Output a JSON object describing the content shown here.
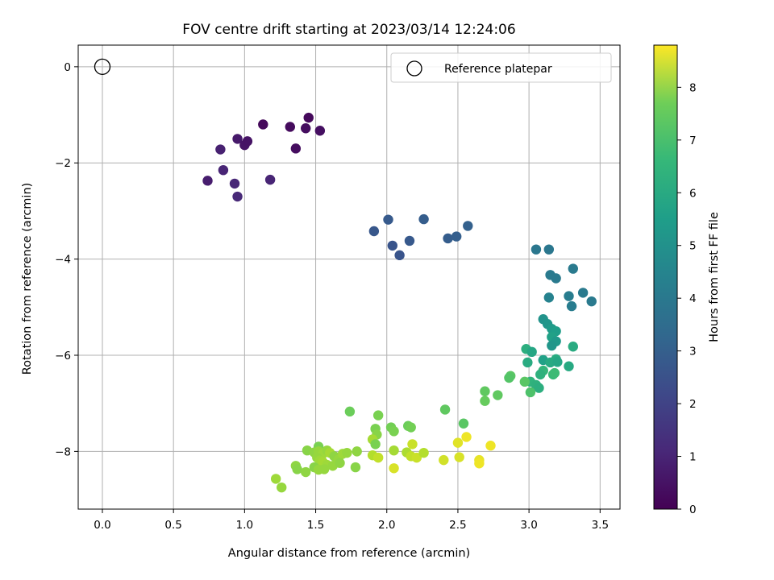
{
  "chart_data": {
    "type": "scatter",
    "title": "FOV centre drift starting at 2023/03/14 12:24:06",
    "xlabel": "Angular distance from reference (arcmin)",
    "ylabel": "Rotation from reference (arcmin)",
    "xlim": [
      -0.17,
      3.64
    ],
    "ylim": [
      -9.2,
      0.45
    ],
    "xticks": [
      0.0,
      0.5,
      1.0,
      1.5,
      2.0,
      2.5,
      3.0,
      3.5
    ],
    "xtick_labels": [
      "0.0",
      "0.5",
      "1.0",
      "1.5",
      "2.0",
      "2.5",
      "3.0",
      "3.5"
    ],
    "yticks": [
      0,
      -2,
      -4,
      -6,
      -8
    ],
    "ytick_labels": [
      "0",
      "−2",
      "−4",
      "−6",
      "−8"
    ],
    "grid": true,
    "legend": {
      "position": "top-right",
      "entries": [
        "Reference platepar"
      ]
    },
    "reference_point": {
      "x": 0.0,
      "y": 0.0
    },
    "colorbar": {
      "label": "Hours from first FF file",
      "range": [
        0,
        8.8
      ],
      "ticks": [
        0,
        1,
        2,
        3,
        4,
        5,
        6,
        7,
        8
      ],
      "tick_labels": [
        "0",
        "1",
        "2",
        "3",
        "4",
        "5",
        "6",
        "7",
        "8"
      ],
      "colormap": "viridis"
    },
    "points": [
      {
        "x": 0.74,
        "y": -2.37,
        "c": 0.7
      },
      {
        "x": 0.83,
        "y": -1.72,
        "c": 0.8
      },
      {
        "x": 0.85,
        "y": -2.15,
        "c": 0.9
      },
      {
        "x": 0.93,
        "y": -2.43,
        "c": 0.95
      },
      {
        "x": 0.95,
        "y": -2.7,
        "c": 1.0
      },
      {
        "x": 0.95,
        "y": -1.5,
        "c": 0.6
      },
      {
        "x": 1.0,
        "y": -1.63,
        "c": 0.5
      },
      {
        "x": 1.02,
        "y": -1.55,
        "c": 0.45
      },
      {
        "x": 1.13,
        "y": -1.2,
        "c": 0.2
      },
      {
        "x": 1.18,
        "y": -2.35,
        "c": 0.9
      },
      {
        "x": 1.32,
        "y": -1.25,
        "c": 0.25
      },
      {
        "x": 1.36,
        "y": -1.7,
        "c": 0.3
      },
      {
        "x": 1.43,
        "y": -1.28,
        "c": 0.3
      },
      {
        "x": 1.45,
        "y": -1.06,
        "c": 0.2
      },
      {
        "x": 1.53,
        "y": -1.33,
        "c": 0.35
      },
      {
        "x": 1.91,
        "y": -3.42,
        "c": 2.4
      },
      {
        "x": 2.01,
        "y": -3.18,
        "c": 2.5
      },
      {
        "x": 2.04,
        "y": -3.72,
        "c": 2.3
      },
      {
        "x": 2.09,
        "y": -3.92,
        "c": 2.3
      },
      {
        "x": 2.16,
        "y": -3.62,
        "c": 2.45
      },
      {
        "x": 2.26,
        "y": -3.17,
        "c": 2.6
      },
      {
        "x": 2.43,
        "y": -3.57,
        "c": 2.6
      },
      {
        "x": 2.49,
        "y": -3.53,
        "c": 2.65
      },
      {
        "x": 2.57,
        "y": -3.31,
        "c": 2.7
      },
      {
        "x": 3.05,
        "y": -3.8,
        "c": 3.5
      },
      {
        "x": 3.14,
        "y": -3.8,
        "c": 3.5
      },
      {
        "x": 3.15,
        "y": -4.33,
        "c": 3.6
      },
      {
        "x": 3.19,
        "y": -4.4,
        "c": 3.6
      },
      {
        "x": 3.14,
        "y": -4.8,
        "c": 3.9
      },
      {
        "x": 3.28,
        "y": -4.77,
        "c": 3.7
      },
      {
        "x": 3.3,
        "y": -4.98,
        "c": 3.7
      },
      {
        "x": 3.31,
        "y": -4.2,
        "c": 3.6
      },
      {
        "x": 3.38,
        "y": -4.7,
        "c": 3.6
      },
      {
        "x": 3.44,
        "y": -4.88,
        "c": 3.6
      },
      {
        "x": 3.1,
        "y": -5.25,
        "c": 4.5
      },
      {
        "x": 3.13,
        "y": -5.35,
        "c": 4.6
      },
      {
        "x": 3.16,
        "y": -5.45,
        "c": 4.8
      },
      {
        "x": 3.19,
        "y": -5.5,
        "c": 4.9
      },
      {
        "x": 3.16,
        "y": -5.62,
        "c": 5.0
      },
      {
        "x": 3.19,
        "y": -5.71,
        "c": 4.7
      },
      {
        "x": 3.16,
        "y": -5.8,
        "c": 4.6
      },
      {
        "x": 2.98,
        "y": -5.87,
        "c": 5.5
      },
      {
        "x": 3.02,
        "y": -5.93,
        "c": 5.2
      },
      {
        "x": 3.1,
        "y": -6.1,
        "c": 5.0
      },
      {
        "x": 3.15,
        "y": -6.15,
        "c": 5.3
      },
      {
        "x": 3.19,
        "y": -6.08,
        "c": 5.4
      },
      {
        "x": 3.2,
        "y": -6.14,
        "c": 5.2
      },
      {
        "x": 3.28,
        "y": -6.23,
        "c": 5.3
      },
      {
        "x": 3.31,
        "y": -5.82,
        "c": 5.4
      },
      {
        "x": 2.99,
        "y": -6.15,
        "c": 5.4
      },
      {
        "x": 3.1,
        "y": -6.32,
        "c": 5.8
      },
      {
        "x": 3.08,
        "y": -6.4,
        "c": 5.6
      },
      {
        "x": 3.17,
        "y": -6.4,
        "c": 5.9
      },
      {
        "x": 3.18,
        "y": -6.37,
        "c": 6.0
      },
      {
        "x": 3.01,
        "y": -6.55,
        "c": 5.7
      },
      {
        "x": 3.05,
        "y": -6.62,
        "c": 5.6
      },
      {
        "x": 3.07,
        "y": -6.68,
        "c": 5.5
      },
      {
        "x": 2.97,
        "y": -6.55,
        "c": 6.5
      },
      {
        "x": 3.01,
        "y": -6.77,
        "c": 6.3
      },
      {
        "x": 2.87,
        "y": -6.43,
        "c": 6.5
      },
      {
        "x": 2.86,
        "y": -6.47,
        "c": 6.4
      },
      {
        "x": 2.69,
        "y": -6.75,
        "c": 6.6
      },
      {
        "x": 2.69,
        "y": -6.95,
        "c": 6.7
      },
      {
        "x": 2.78,
        "y": -6.83,
        "c": 6.6
      },
      {
        "x": 2.54,
        "y": -7.42,
        "c": 6.5
      },
      {
        "x": 2.41,
        "y": -7.13,
        "c": 6.6
      },
      {
        "x": 1.74,
        "y": -7.17,
        "c": 6.8
      },
      {
        "x": 1.94,
        "y": -7.25,
        "c": 7.0
      },
      {
        "x": 2.15,
        "y": -7.47,
        "c": 6.8
      },
      {
        "x": 2.17,
        "y": -7.5,
        "c": 6.9
      },
      {
        "x": 2.03,
        "y": -7.5,
        "c": 6.9
      },
      {
        "x": 2.05,
        "y": -7.58,
        "c": 7.0
      },
      {
        "x": 1.92,
        "y": -7.53,
        "c": 7.0
      },
      {
        "x": 1.93,
        "y": -7.65,
        "c": 7.2
      },
      {
        "x": 1.9,
        "y": -7.75,
        "c": 7.6
      },
      {
        "x": 1.92,
        "y": -7.85,
        "c": 7.0
      },
      {
        "x": 1.52,
        "y": -7.9,
        "c": 7.0
      },
      {
        "x": 1.44,
        "y": -7.98,
        "c": 7.2
      },
      {
        "x": 1.49,
        "y": -8.02,
        "c": 7.3
      },
      {
        "x": 1.52,
        "y": -8.0,
        "c": 7.4
      },
      {
        "x": 1.55,
        "y": -8.05,
        "c": 7.5
      },
      {
        "x": 1.58,
        "y": -7.98,
        "c": 7.4
      },
      {
        "x": 1.6,
        "y": -8.03,
        "c": 7.6
      },
      {
        "x": 1.63,
        "y": -8.1,
        "c": 7.3
      },
      {
        "x": 1.66,
        "y": -8.17,
        "c": 7.4
      },
      {
        "x": 1.69,
        "y": -8.05,
        "c": 7.5
      },
      {
        "x": 1.72,
        "y": -8.03,
        "c": 7.4
      },
      {
        "x": 1.79,
        "y": -8.0,
        "c": 7.3
      },
      {
        "x": 1.51,
        "y": -8.13,
        "c": 7.4
      },
      {
        "x": 1.53,
        "y": -8.19,
        "c": 7.5
      },
      {
        "x": 1.55,
        "y": -8.22,
        "c": 7.6
      },
      {
        "x": 1.58,
        "y": -8.28,
        "c": 7.5
      },
      {
        "x": 1.62,
        "y": -8.3,
        "c": 7.4
      },
      {
        "x": 1.67,
        "y": -8.24,
        "c": 7.3
      },
      {
        "x": 1.49,
        "y": -8.33,
        "c": 7.2
      },
      {
        "x": 1.52,
        "y": -8.38,
        "c": 7.4
      },
      {
        "x": 1.56,
        "y": -8.37,
        "c": 7.4
      },
      {
        "x": 1.36,
        "y": -8.3,
        "c": 7.3
      },
      {
        "x": 1.37,
        "y": -8.37,
        "c": 7.2
      },
      {
        "x": 1.43,
        "y": -8.43,
        "c": 7.3
      },
      {
        "x": 1.78,
        "y": -8.33,
        "c": 7.2
      },
      {
        "x": 1.22,
        "y": -8.57,
        "c": 7.5
      },
      {
        "x": 1.26,
        "y": -8.75,
        "c": 7.4
      },
      {
        "x": 1.9,
        "y": -8.08,
        "c": 7.8
      },
      {
        "x": 1.94,
        "y": -8.13,
        "c": 8.0
      },
      {
        "x": 2.05,
        "y": -7.98,
        "c": 7.6
      },
      {
        "x": 2.14,
        "y": -8.02,
        "c": 7.7
      },
      {
        "x": 2.17,
        "y": -8.1,
        "c": 8.0
      },
      {
        "x": 2.21,
        "y": -8.13,
        "c": 8.1
      },
      {
        "x": 2.26,
        "y": -8.03,
        "c": 7.8
      },
      {
        "x": 2.18,
        "y": -7.85,
        "c": 8.1
      },
      {
        "x": 2.4,
        "y": -8.18,
        "c": 8.2
      },
      {
        "x": 2.5,
        "y": -7.82,
        "c": 8.4
      },
      {
        "x": 2.51,
        "y": -8.12,
        "c": 8.3
      },
      {
        "x": 2.56,
        "y": -7.7,
        "c": 8.6
      },
      {
        "x": 2.65,
        "y": -8.18,
        "c": 8.5
      },
      {
        "x": 2.65,
        "y": -8.25,
        "c": 8.6
      },
      {
        "x": 2.73,
        "y": -7.88,
        "c": 8.6
      },
      {
        "x": 2.05,
        "y": -8.35,
        "c": 8.3
      }
    ]
  }
}
